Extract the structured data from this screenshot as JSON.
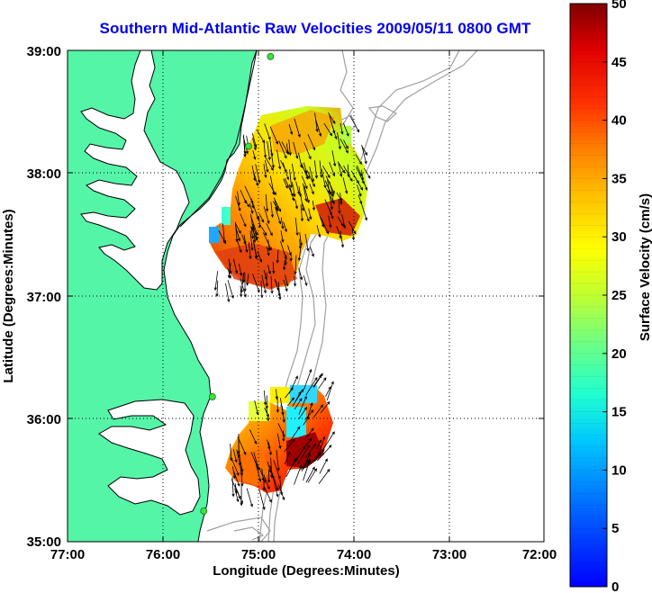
{
  "title": "Southern Mid-Atlantic Raw Velocities 2009/05/11 0800 GMT",
  "axes": {
    "xlabel": "Longitude (Degrees:Minutes)",
    "ylabel": "Latitude (Degrees:Minutes)",
    "xticks": [
      "77:00",
      "76:00",
      "75:00",
      "74:00",
      "73:00",
      "72:00"
    ],
    "yticks": [
      "39:00",
      "38:00",
      "37:00",
      "36:00",
      "35:00"
    ],
    "xlim_deg_west": [
      77,
      72
    ],
    "ylim_deg_north": [
      35,
      39
    ]
  },
  "colorbar": {
    "label": "Surface Velocity (cm/s)",
    "ticks": [
      "0",
      "5",
      "10",
      "15",
      "20",
      "25",
      "30",
      "35",
      "40",
      "45",
      "50"
    ],
    "range": [
      0,
      50
    ],
    "colormap": "jet"
  },
  "colors": {
    "land": "#55f5a8",
    "water": "#ffffff",
    "coastline": "#000000",
    "bathymetry": "#a0a0a0",
    "title": "#0000ee",
    "site_marker": "#40e040"
  },
  "stations": [
    {
      "lon": 74.87,
      "lat": 38.95
    },
    {
      "lon": 75.1,
      "lat": 38.22
    },
    {
      "lon": 75.48,
      "lat": 36.18
    },
    {
      "lon": 75.57,
      "lat": 35.25
    }
  ]
}
